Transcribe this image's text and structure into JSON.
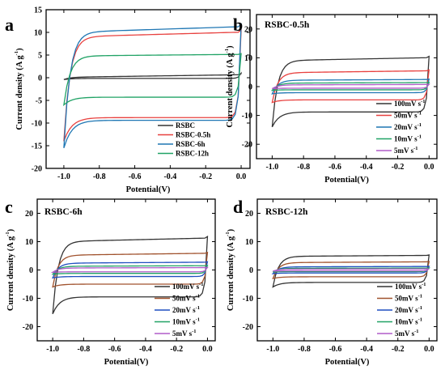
{
  "chart_data": [
    {
      "type": "line",
      "label": "a",
      "title": "",
      "xlabel": "Potential(V)",
      "ylabel": "Current density (A g-1)",
      "ylabel_main": "Current density (A g",
      "ylabel_sup": "-1",
      "ylabel_end": ")",
      "xlim": [
        -1.1,
        0.05
      ],
      "ylim": [
        -20,
        15
      ],
      "xticks": [
        "-1.0",
        "-0.8",
        "-0.6",
        "-0.4",
        "-0.2",
        "0.0"
      ],
      "yticks": [
        "-20",
        "-15",
        "-10",
        "-5",
        "0",
        "5",
        "10",
        "15"
      ],
      "legend": "bottom-right",
      "series": [
        {
          "name": "RSBC",
          "color": "#333333",
          "upper_start": -0.4,
          "upper_plateau": 0.1,
          "upper_end": 0.9,
          "lower_start": -0.4,
          "lower_plateau": -0.15,
          "lower_end": 1.0
        },
        {
          "name": "RSBC-0.5h",
          "color": "#e8413f",
          "upper_start": -14.0,
          "upper_plateau": 9.0,
          "upper_end": 10.5,
          "lower_start": -14.0,
          "lower_plateau": -8.8,
          "lower_end": 10.5
        },
        {
          "name": "RSBC-6h",
          "color": "#1f77b4",
          "upper_start": -15.5,
          "upper_plateau": 10.0,
          "upper_end": 11.8,
          "lower_start": -15.5,
          "lower_plateau": -9.4,
          "lower_end": 11.8
        },
        {
          "name": "RSBC-12h",
          "color": "#21a366",
          "upper_start": -6.0,
          "upper_plateau": 4.8,
          "upper_end": 5.3,
          "lower_start": -6.0,
          "lower_plateau": -4.3,
          "lower_end": 5.3
        }
      ]
    },
    {
      "type": "line",
      "label": "b",
      "title": "RSBC-0.5h",
      "xlabel": "Potential(V)",
      "ylabel": "Current density (A g-1)",
      "ylabel_main": "Current density (A g",
      "ylabel_sup": "-1",
      "ylabel_end": ")",
      "xlim": [
        -1.1,
        0.05
      ],
      "ylim": [
        -25,
        25
      ],
      "xticks": [
        "-1.0",
        "-0.8",
        "-0.6",
        "-0.4",
        "-0.2",
        "0.0"
      ],
      "yticks": [
        "-20",
        "-10",
        "0",
        "10",
        "20"
      ],
      "legend": "bottom-right",
      "series": [
        {
          "name": "100mV s",
          "sup": "-1",
          "color": "#333333",
          "upper_start": -14.0,
          "upper_plateau": 9.0,
          "upper_end": 10.5,
          "lower_start": -14.0,
          "lower_plateau": -8.8,
          "lower_end": 10.5
        },
        {
          "name": "50mV s",
          "sup": "-1",
          "color": "#e8413f",
          "upper_start": -5.5,
          "upper_plateau": 4.8,
          "upper_end": 5.8,
          "lower_start": -5.5,
          "lower_plateau": -4.6,
          "lower_end": 5.8
        },
        {
          "name": "20mV s",
          "sup": "-1",
          "color": "#1f77b4",
          "upper_start": -2.5,
          "upper_plateau": 2.2,
          "upper_end": 2.6,
          "lower_start": -2.5,
          "lower_plateau": -2.1,
          "lower_end": 2.6
        },
        {
          "name": "10mV s",
          "sup": "-1",
          "color": "#21a366",
          "upper_start": -1.3,
          "upper_plateau": 1.2,
          "upper_end": 1.5,
          "lower_start": -1.3,
          "lower_plateau": -1.1,
          "lower_end": 1.5
        },
        {
          "name": "5mV s",
          "sup": "-1",
          "color": "#b05cc8",
          "upper_start": -0.7,
          "upper_plateau": 0.6,
          "upper_end": 0.8,
          "lower_start": -0.7,
          "lower_plateau": -0.55,
          "lower_end": 0.8
        }
      ]
    },
    {
      "type": "line",
      "label": "c",
      "title": "RSBC-6h",
      "xlabel": "Potential(V)",
      "ylabel": "Current density (A g-1)",
      "ylabel_main": "Current density (A g",
      "ylabel_sup": "-1",
      "ylabel_end": ")",
      "xlim": [
        -1.1,
        0.05
      ],
      "ylim": [
        -25,
        25
      ],
      "xticks": [
        "-1.0",
        "-0.8",
        "-0.6",
        "-0.4",
        "-0.2",
        "0.0"
      ],
      "yticks": [
        "-20",
        "-10",
        "0",
        "10",
        "20"
      ],
      "legend": "bottom-right",
      "series": [
        {
          "name": "100mV s",
          "sup": "-1",
          "color": "#333333",
          "upper_start": -15.5,
          "upper_plateau": 10.0,
          "upper_end": 11.8,
          "lower_start": -15.5,
          "lower_plateau": -9.5,
          "lower_end": 11.8
        },
        {
          "name": "50mV s",
          "sup": "-1",
          "color": "#a0522d",
          "upper_start": -6.0,
          "upper_plateau": 5.2,
          "upper_end": 6.2,
          "lower_start": -6.0,
          "lower_plateau": -5.0,
          "lower_end": 6.2
        },
        {
          "name": "20mV s",
          "sup": "-1",
          "color": "#1f4fc0",
          "upper_start": -2.8,
          "upper_plateau": 2.4,
          "upper_end": 2.9,
          "lower_start": -2.8,
          "lower_plateau": -2.3,
          "lower_end": 2.9
        },
        {
          "name": "10mV s",
          "sup": "-1",
          "color": "#21a366",
          "upper_start": -1.5,
          "upper_plateau": 1.3,
          "upper_end": 1.6,
          "lower_start": -1.5,
          "lower_plateau": -1.2,
          "lower_end": 1.6
        },
        {
          "name": "5mV s",
          "sup": "-1",
          "color": "#b05cc8",
          "upper_start": -0.8,
          "upper_plateau": 0.7,
          "upper_end": 0.9,
          "lower_start": -0.8,
          "lower_plateau": -0.65,
          "lower_end": 0.9
        }
      ]
    },
    {
      "type": "line",
      "label": "d",
      "title": "RSBC-12h",
      "xlabel": "Potential(V)",
      "ylabel": "Current density (A g-1)",
      "ylabel_main": "Current density (A g",
      "ylabel_sup": "-1",
      "ylabel_end": ")",
      "xlim": [
        -1.1,
        0.05
      ],
      "ylim": [
        -25,
        25
      ],
      "xticks": [
        "-1.0",
        "-0.8",
        "-0.6",
        "-0.4",
        "-0.2",
        "0.0"
      ],
      "yticks": [
        "-20",
        "-10",
        "0",
        "10",
        "20"
      ],
      "legend": "bottom-right",
      "series": [
        {
          "name": "100mV s",
          "sup": "-1",
          "color": "#333333",
          "upper_start": -6.0,
          "upper_plateau": 4.8,
          "upper_end": 5.3,
          "lower_start": -6.0,
          "lower_plateau": -4.4,
          "lower_end": 5.3
        },
        {
          "name": "50mV s",
          "sup": "-1",
          "color": "#a0522d",
          "upper_start": -3.0,
          "upper_plateau": 2.6,
          "upper_end": 3.0,
          "lower_start": -3.0,
          "lower_plateau": -2.4,
          "lower_end": 3.0
        },
        {
          "name": "20mV s",
          "sup": "-1",
          "color": "#1f4fc0",
          "upper_start": -1.3,
          "upper_plateau": 1.1,
          "upper_end": 1.3,
          "lower_start": -1.3,
          "lower_plateau": -1.05,
          "lower_end": 1.3
        },
        {
          "name": "10mV s",
          "sup": "-1",
          "color": "#21a366",
          "upper_start": -0.7,
          "upper_plateau": 0.6,
          "upper_end": 0.7,
          "lower_start": -0.7,
          "lower_plateau": -0.55,
          "lower_end": 0.7
        },
        {
          "name": "5mV s",
          "sup": "-1",
          "color": "#b05cc8",
          "upper_start": -0.4,
          "upper_plateau": 0.3,
          "upper_end": 0.4,
          "lower_start": -0.4,
          "lower_plateau": -0.3,
          "lower_end": 0.4
        }
      ]
    }
  ]
}
